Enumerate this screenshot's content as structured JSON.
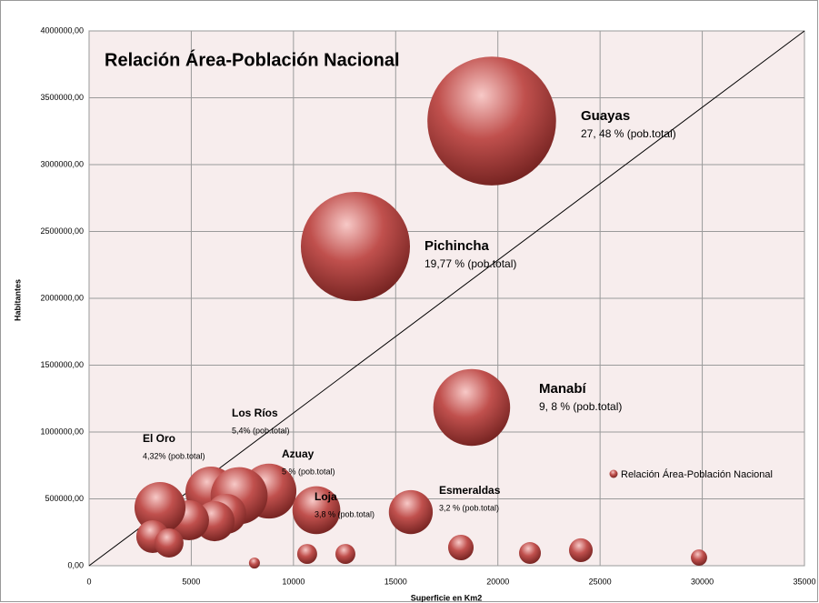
{
  "chart_data": {
    "type": "bubble",
    "title": "Relación Área-Población Nacional",
    "xlabel": "Superficie en Km2",
    "ylabel": "Habitantes",
    "xlim": [
      0,
      35000
    ],
    "ylim": [
      0,
      4000000
    ],
    "xticks": [
      0,
      5000,
      10000,
      15000,
      20000,
      25000,
      30000,
      35000
    ],
    "yticks": [
      {
        "value": 0,
        "label": "0,00"
      },
      {
        "value": 500000,
        "label": "500000,00"
      },
      {
        "value": 1000000,
        "label": "1000000,00"
      },
      {
        "value": 1500000,
        "label": "1500000,00"
      },
      {
        "value": 2000000,
        "label": "2000000,00"
      },
      {
        "value": 2500000,
        "label": "2500000,00"
      },
      {
        "value": 3000000,
        "label": "3000000,00"
      },
      {
        "value": 3500000,
        "label": "3500000,00"
      },
      {
        "value": 4000000,
        "label": "4000000,00"
      }
    ],
    "grid": true,
    "legend": "right",
    "series": [
      {
        "name": "Relación Área-Población Nacional",
        "color": "#c0504d",
        "x": [
          19700,
          13030,
          18720,
          5960,
          8800,
          7340,
          6710,
          6140,
          4890,
          3470,
          3110,
          3910,
          11120,
          15740,
          8090,
          10670,
          12540,
          18190,
          21570,
          24060,
          29840
        ],
        "values": [
          3326000,
          2388000,
          1184000,
          551000,
          558000,
          524000,
          388000,
          333000,
          340000,
          435000,
          218000,
          170000,
          415000,
          401000,
          20000,
          88000,
          88000,
          136000,
          95000,
          116000,
          61000
        ],
        "sizes": [
          27.48,
          19.77,
          9.8,
          4.3,
          5,
          5.4,
          2.66,
          2.66,
          2.66,
          4.32,
          1.78,
          1.4,
          3.8,
          3.2,
          0.2,
          0.66,
          0.66,
          1.08,
          0.79,
          0.93,
          0.44
        ]
      }
    ],
    "annotations": [
      {
        "label": "Guayas",
        "text": "27, 48 % (pob.total)"
      },
      {
        "label": "Pichincha",
        "text": "19,77 % (pob.total)"
      },
      {
        "label": "Manabí",
        "text": "9, 8 % (pob.total)"
      },
      {
        "label": "Los Ríos",
        "text": "5,4% (pob.total)"
      },
      {
        "label": "El Oro",
        "text": "4,32% (pob.total)"
      },
      {
        "label": "Azuay",
        "text": "5 % (pob.total)"
      },
      {
        "label": "Loja",
        "text": "3,8  % (pob.total)"
      },
      {
        "label": "Esmeraldas",
        "text": "3,2  % (pob.total)"
      }
    ]
  }
}
